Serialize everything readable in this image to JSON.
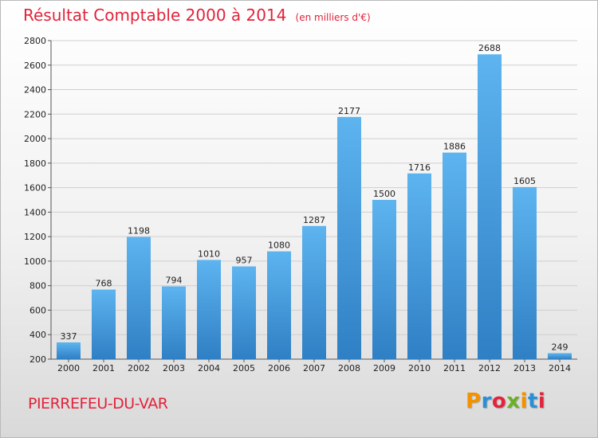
{
  "title": "Résultat Comptable 2000 à 2014",
  "unit_note": "(en milliers d'€)",
  "commune": "PIERREFEU-DU-VAR",
  "logo": {
    "letters": [
      "P",
      "r",
      "o",
      "x",
      "i",
      "t",
      "i"
    ],
    "colors": [
      "#f39200",
      "#2a8fd3",
      "#e2233b",
      "#6ab023",
      "#f39200",
      "#2a8fd3",
      "#e2233b"
    ]
  },
  "chart_data": {
    "type": "bar",
    "categories": [
      "2000",
      "2001",
      "2002",
      "2003",
      "2004",
      "2005",
      "2006",
      "2007",
      "2008",
      "2009",
      "2010",
      "2011",
      "2012",
      "2013",
      "2014"
    ],
    "values": [
      337,
      768,
      1198,
      794,
      1010,
      957,
      1080,
      1287,
      2177,
      1500,
      1716,
      1886,
      2688,
      1605,
      249
    ],
    "ylim": [
      200,
      2800
    ],
    "yticks": [
      200,
      400,
      600,
      800,
      1000,
      1200,
      1400,
      1600,
      1800,
      2000,
      2200,
      2400,
      2600,
      2800
    ],
    "grid": true,
    "bar_color": "#3b8fd9"
  }
}
